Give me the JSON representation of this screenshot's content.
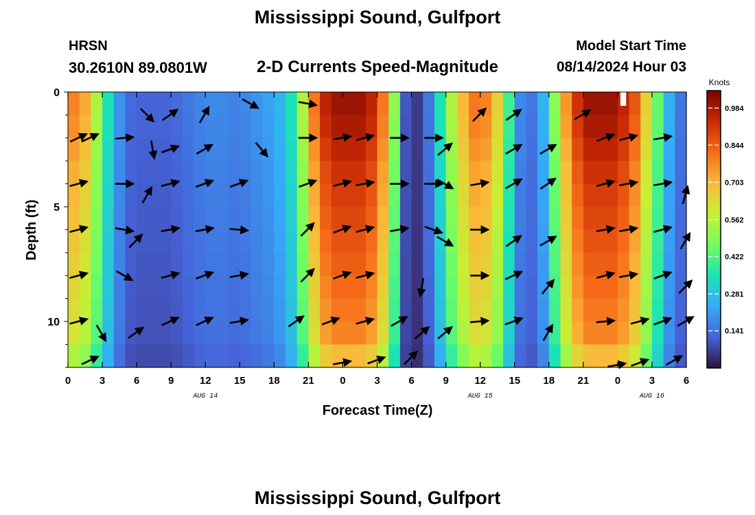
{
  "header": {
    "title": "Mississippi Sound, Gulfport",
    "station": "HRSN",
    "coordinates": "30.2610N  89.0801W",
    "subtitle": "2-D Currents Speed-Magnitude",
    "model_label": "Model Start Time",
    "model_time": "08/14/2024 Hour 03"
  },
  "footer": {
    "title": "Mississippi Sound, Gulfport"
  },
  "colors": {
    "scale": [
      "#30123b",
      "#4662d7",
      "#36aaf9",
      "#1ae4b6",
      "#72fe5e",
      "#c8ef34",
      "#faba39",
      "#f66b19",
      "#ca2a04",
      "#7a0403"
    ],
    "arrow": "#000000",
    "grid": "#ffffff"
  },
  "chart_data": {
    "type": "heatmap",
    "xlabel": "Forecast Time(Z)",
    "ylabel": "Depth (ft)",
    "x_ticks": [
      "0",
      "3",
      "6",
      "9",
      "12",
      "15",
      "18",
      "21",
      "0",
      "3",
      "6",
      "9",
      "12",
      "15",
      "18",
      "21",
      "0",
      "3",
      "6"
    ],
    "x_range_hours": [
      0,
      54
    ],
    "date_labels": [
      {
        "label": "AUG 14",
        "hour": 12
      },
      {
        "label": "AUG 15",
        "hour": 36
      },
      {
        "label": "AUG 16",
        "hour": 51
      }
    ],
    "y_ticks": [
      0,
      5,
      10
    ],
    "ylim": [
      0,
      12
    ],
    "colorbar": {
      "title": "Knots",
      "ticks": [
        "0.984",
        "0.844",
        "0.703",
        "0.562",
        "0.422",
        "0.281",
        "0.141"
      ],
      "range": [
        0.0,
        1.05
      ]
    },
    "hours": [
      0,
      1,
      2,
      3,
      4,
      5,
      6,
      7,
      8,
      9,
      10,
      11,
      12,
      13,
      14,
      15,
      16,
      17,
      18,
      19,
      20,
      21,
      22,
      23,
      24,
      25,
      26,
      27,
      28,
      29,
      30,
      31,
      32,
      33,
      34,
      35,
      36,
      37,
      38,
      39,
      40,
      41,
      42,
      43,
      44,
      45,
      46,
      47,
      48,
      49,
      50,
      51,
      52,
      53
    ],
    "depths_ft": [
      0,
      1,
      2,
      3,
      4,
      5,
      6,
      7,
      8,
      9,
      10,
      11
    ],
    "surface_speed_knots": [
      0.78,
      0.72,
      0.55,
      0.35,
      0.2,
      0.13,
      0.12,
      0.12,
      0.12,
      0.13,
      0.15,
      0.17,
      0.18,
      0.18,
      0.17,
      0.18,
      0.2,
      0.22,
      0.26,
      0.35,
      0.55,
      0.8,
      0.95,
      1.0,
      1.0,
      1.0,
      0.95,
      0.8,
      0.5,
      0.1,
      0.06,
      0.15,
      0.35,
      0.55,
      0.7,
      0.8,
      0.78,
      0.65,
      0.4,
      0.18,
      0.15,
      0.25,
      0.5,
      0.75,
      0.92,
      1.0,
      1.0,
      1.0,
      0.95,
      0.85,
      0.65,
      0.45,
      0.25,
      0.15
    ],
    "depth_profile": [
      1.0,
      0.98,
      0.95,
      0.92,
      0.9,
      0.88,
      0.86,
      0.84,
      0.82,
      0.8,
      0.78,
      0.7
    ],
    "missing_cells": [
      {
        "hour": 48,
        "depth_ft": 0
      }
    ],
    "arrows": [
      {
        "hour": 0,
        "depth_ft": 2,
        "angle": -25
      },
      {
        "hour": 1,
        "depth_ft": 2,
        "angle": -25
      },
      {
        "hour": 4,
        "depth_ft": 2,
        "angle": -5
      },
      {
        "hour": 6,
        "depth_ft": 1,
        "angle": 45
      },
      {
        "hour": 8,
        "depth_ft": 1,
        "angle": -35
      },
      {
        "hour": 6.5,
        "depth_ft": 2.5,
        "angle": 80
      },
      {
        "hour": 8,
        "depth_ft": 2.5,
        "angle": -20
      },
      {
        "hour": 11,
        "depth_ft": 1,
        "angle": -60
      },
      {
        "hour": 11,
        "depth_ft": 2.5,
        "angle": -30
      },
      {
        "hour": 15,
        "depth_ft": 0.5,
        "angle": 30
      },
      {
        "hour": 16,
        "depth_ft": 2.5,
        "angle": 50
      },
      {
        "hour": 20,
        "depth_ft": 0.5,
        "angle": 10
      },
      {
        "hour": 20,
        "depth_ft": 2,
        "angle": 0
      },
      {
        "hour": 23,
        "depth_ft": 2,
        "angle": -10
      },
      {
        "hour": 25,
        "depth_ft": 2,
        "angle": -15
      },
      {
        "hour": 28,
        "depth_ft": 2,
        "angle": 0
      },
      {
        "hour": 31,
        "depth_ft": 2,
        "angle": 0
      },
      {
        "hour": 32,
        "depth_ft": 2.5,
        "angle": -40
      },
      {
        "hour": 35,
        "depth_ft": 1,
        "angle": -45
      },
      {
        "hour": 38,
        "depth_ft": 1,
        "angle": -35
      },
      {
        "hour": 38,
        "depth_ft": 2.5,
        "angle": -30
      },
      {
        "hour": 41,
        "depth_ft": 2.5,
        "angle": -30
      },
      {
        "hour": 44,
        "depth_ft": 1,
        "angle": -30
      },
      {
        "hour": 46,
        "depth_ft": 2,
        "angle": -20
      },
      {
        "hour": 48,
        "depth_ft": 2,
        "angle": -15
      },
      {
        "hour": 51,
        "depth_ft": 2,
        "angle": -10
      },
      {
        "hour": 0,
        "depth_ft": 4,
        "angle": -15
      },
      {
        "hour": 4,
        "depth_ft": 4,
        "angle": 0
      },
      {
        "hour": 6,
        "depth_ft": 4.5,
        "angle": -60
      },
      {
        "hour": 8,
        "depth_ft": 4,
        "angle": -15
      },
      {
        "hour": 11,
        "depth_ft": 4,
        "angle": -20
      },
      {
        "hour": 14,
        "depth_ft": 4,
        "angle": -20
      },
      {
        "hour": 20,
        "depth_ft": 4,
        "angle": -20
      },
      {
        "hour": 23,
        "depth_ft": 4,
        "angle": -15
      },
      {
        "hour": 25,
        "depth_ft": 4,
        "angle": -10
      },
      {
        "hour": 28,
        "depth_ft": 4,
        "angle": 0
      },
      {
        "hour": 31,
        "depth_ft": 4,
        "angle": 0
      },
      {
        "hour": 32,
        "depth_ft": 4,
        "angle": 30
      },
      {
        "hour": 35,
        "depth_ft": 4,
        "angle": -10
      },
      {
        "hour": 38,
        "depth_ft": 4,
        "angle": -30
      },
      {
        "hour": 41,
        "depth_ft": 4,
        "angle": -35
      },
      {
        "hour": 46,
        "depth_ft": 4,
        "angle": -15
      },
      {
        "hour": 48,
        "depth_ft": 4,
        "angle": -10
      },
      {
        "hour": 51,
        "depth_ft": 4,
        "angle": -10
      },
      {
        "hour": 53,
        "depth_ft": 4.5,
        "angle": -75
      },
      {
        "hour": 0,
        "depth_ft": 6,
        "angle": -15
      },
      {
        "hour": 4,
        "depth_ft": 6,
        "angle": 10
      },
      {
        "hour": 5,
        "depth_ft": 6.5,
        "angle": -45
      },
      {
        "hour": 8,
        "depth_ft": 6,
        "angle": -10
      },
      {
        "hour": 11,
        "depth_ft": 6,
        "angle": -10
      },
      {
        "hour": 14,
        "depth_ft": 6,
        "angle": 5
      },
      {
        "hour": 20,
        "depth_ft": 6,
        "angle": -45
      },
      {
        "hour": 23,
        "depth_ft": 6,
        "angle": -20
      },
      {
        "hour": 25,
        "depth_ft": 6,
        "angle": -15
      },
      {
        "hour": 28,
        "depth_ft": 6,
        "angle": -10
      },
      {
        "hour": 31,
        "depth_ft": 6,
        "angle": 20
      },
      {
        "hour": 32,
        "depth_ft": 6.5,
        "angle": 30
      },
      {
        "hour": 35,
        "depth_ft": 6,
        "angle": 0
      },
      {
        "hour": 38,
        "depth_ft": 6.5,
        "angle": -35
      },
      {
        "hour": 41,
        "depth_ft": 6.5,
        "angle": -30
      },
      {
        "hour": 46,
        "depth_ft": 6,
        "angle": -10
      },
      {
        "hour": 48,
        "depth_ft": 6,
        "angle": -10
      },
      {
        "hour": 51,
        "depth_ft": 6,
        "angle": -15
      },
      {
        "hour": 53,
        "depth_ft": 6.5,
        "angle": -60
      },
      {
        "hour": 0,
        "depth_ft": 8,
        "angle": -15
      },
      {
        "hour": 4,
        "depth_ft": 8,
        "angle": 30
      },
      {
        "hour": 8,
        "depth_ft": 8,
        "angle": -15
      },
      {
        "hour": 11,
        "depth_ft": 8,
        "angle": -20
      },
      {
        "hour": 14,
        "depth_ft": 8,
        "angle": -10
      },
      {
        "hour": 20,
        "depth_ft": 8,
        "angle": -45
      },
      {
        "hour": 23,
        "depth_ft": 8,
        "angle": -20
      },
      {
        "hour": 25,
        "depth_ft": 8,
        "angle": -15
      },
      {
        "hour": 30,
        "depth_ft": 8.5,
        "angle": 100
      },
      {
        "hour": 35,
        "depth_ft": 8,
        "angle": 0
      },
      {
        "hour": 38,
        "depth_ft": 8,
        "angle": -25
      },
      {
        "hour": 41,
        "depth_ft": 8.5,
        "angle": -50
      },
      {
        "hour": 46,
        "depth_ft": 8,
        "angle": -15
      },
      {
        "hour": 48,
        "depth_ft": 8,
        "angle": -10
      },
      {
        "hour": 51,
        "depth_ft": 8,
        "angle": -20
      },
      {
        "hour": 53,
        "depth_ft": 8.5,
        "angle": -45
      },
      {
        "hour": 0,
        "depth_ft": 10,
        "angle": -15
      },
      {
        "hour": 2,
        "depth_ft": 10.5,
        "angle": 60
      },
      {
        "hour": 5,
        "depth_ft": 10.5,
        "angle": -35
      },
      {
        "hour": 8,
        "depth_ft": 10,
        "angle": -25
      },
      {
        "hour": 11,
        "depth_ft": 10,
        "angle": -25
      },
      {
        "hour": 14,
        "depth_ft": 10,
        "angle": -10
      },
      {
        "hour": 19,
        "depth_ft": 10,
        "angle": -35
      },
      {
        "hour": 22,
        "depth_ft": 10,
        "angle": -20
      },
      {
        "hour": 25,
        "depth_ft": 10,
        "angle": -15
      },
      {
        "hour": 28,
        "depth_ft": 10,
        "angle": -30
      },
      {
        "hour": 30,
        "depth_ft": 10.5,
        "angle": -40
      },
      {
        "hour": 32,
        "depth_ft": 10.5,
        "angle": -40
      },
      {
        "hour": 35,
        "depth_ft": 10,
        "angle": -5
      },
      {
        "hour": 38,
        "depth_ft": 10,
        "angle": -20
      },
      {
        "hour": 41,
        "depth_ft": 10.5,
        "angle": -60
      },
      {
        "hour": 46,
        "depth_ft": 10,
        "angle": -5
      },
      {
        "hour": 49,
        "depth_ft": 10,
        "angle": -15
      },
      {
        "hour": 51,
        "depth_ft": 10,
        "angle": -20
      },
      {
        "hour": 53,
        "depth_ft": 10,
        "angle": -30
      },
      {
        "hour": 1,
        "depth_ft": 11.7,
        "angle": -25
      },
      {
        "hour": 23,
        "depth_ft": 11.8,
        "angle": -10
      },
      {
        "hour": 26,
        "depth_ft": 11.7,
        "angle": -20
      },
      {
        "hour": 29,
        "depth_ft": 11.6,
        "angle": -45
      },
      {
        "hour": 47,
        "depth_ft": 11.9,
        "angle": -10
      },
      {
        "hour": 49,
        "depth_ft": 11.8,
        "angle": -20
      },
      {
        "hour": 52,
        "depth_ft": 11.7,
        "angle": -30
      }
    ]
  }
}
